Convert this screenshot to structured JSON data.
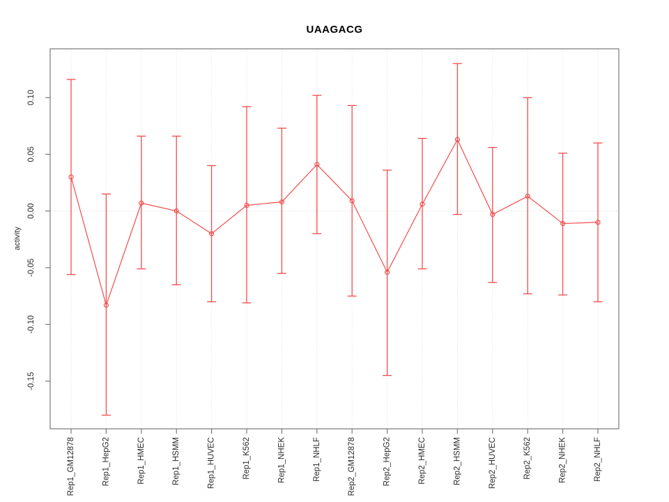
{
  "colors": {
    "series": "#f24b4b",
    "box": "#787878",
    "grid": "#dcdcdc",
    "zero_line": "#d4d4d4",
    "text": "#2b2b2b",
    "title": "#000000"
  },
  "chart_data": {
    "type": "line",
    "title": "UAAGACG",
    "xlabel": "",
    "ylabel": "activity",
    "legend_position": "none",
    "marker": "open-circle",
    "error_bars": true,
    "grid": "vertical dotted line at each category; dotted horizontal line at y=0",
    "ylim": [
      -0.192,
      0.143
    ],
    "yticks": [
      -0.15,
      -0.1,
      -0.05,
      0.0,
      0.05,
      0.1
    ],
    "categories": [
      "Rep1_GM12878",
      "Rep1_HepG2",
      "Rep1_HMEC",
      "Rep1_HSMM",
      "Rep1_HUVEC",
      "Rep1_K562",
      "Rep1_NHEK",
      "Rep1_NHLF",
      "Rep2_GM12878",
      "Rep2_HepG2",
      "Rep2_HMEC",
      "Rep2_HSMM",
      "Rep2_HUVEC",
      "Rep2_K562",
      "Rep2_NHEK",
      "Rep2_NHLF"
    ],
    "series": [
      {
        "name": "activity",
        "values": [
          0.03,
          -0.083,
          0.007,
          0.0,
          -0.02,
          0.005,
          0.008,
          0.041,
          0.009,
          -0.054,
          0.006,
          0.063,
          -0.003,
          0.013,
          -0.011,
          -0.01
        ],
        "lower": [
          -0.056,
          -0.18,
          -0.051,
          -0.065,
          -0.08,
          -0.081,
          -0.055,
          -0.02,
          -0.075,
          -0.145,
          -0.051,
          -0.003,
          -0.063,
          -0.073,
          -0.074,
          -0.08
        ],
        "upper": [
          0.116,
          0.015,
          0.066,
          0.066,
          0.04,
          0.092,
          0.073,
          0.102,
          0.093,
          0.036,
          0.064,
          0.13,
          0.056,
          0.1,
          0.051,
          0.06
        ]
      }
    ]
  }
}
